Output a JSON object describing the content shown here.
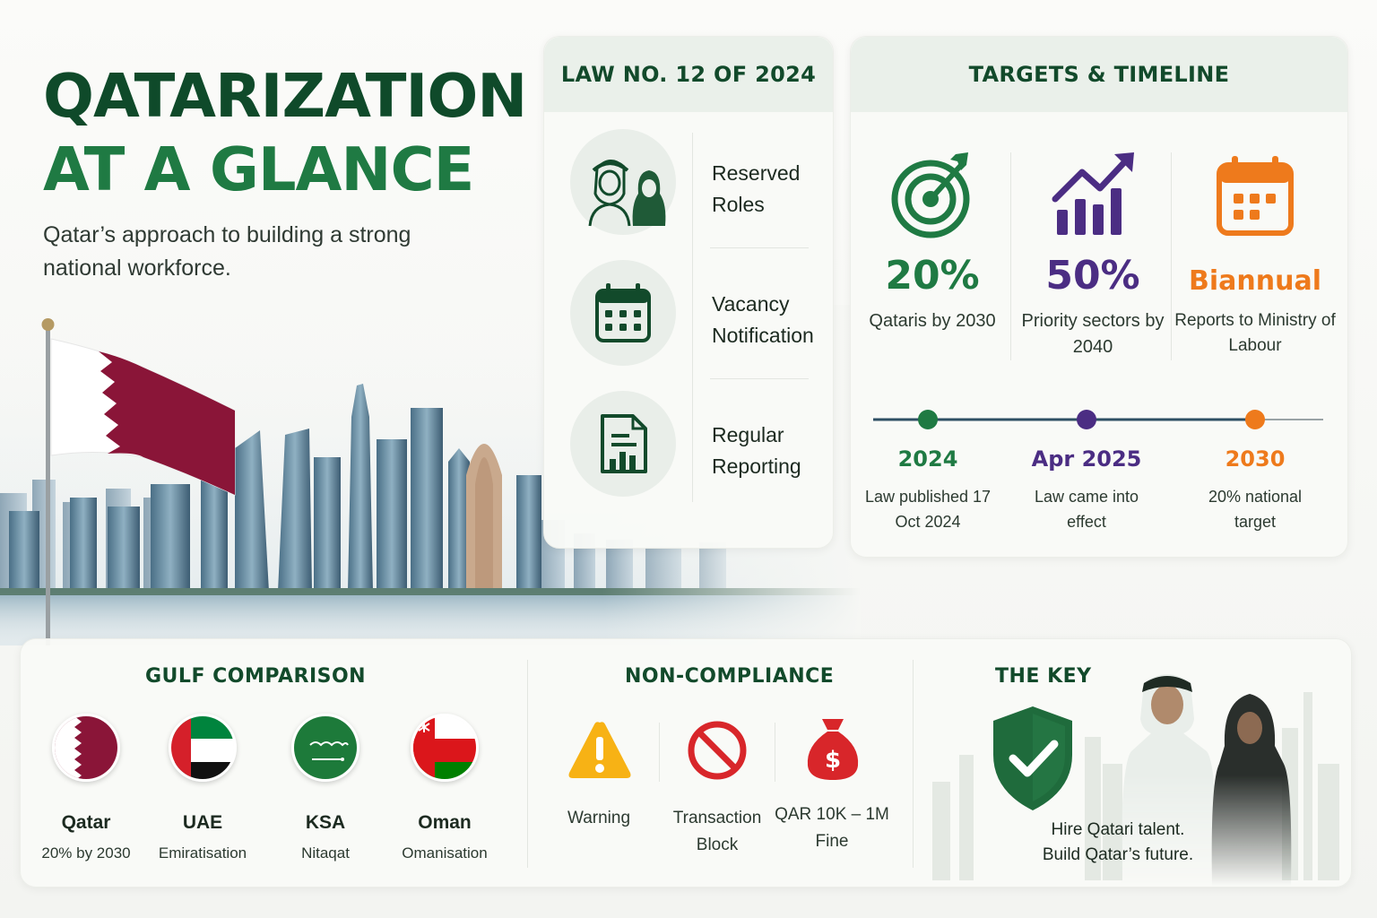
{
  "hero": {
    "title_line1": "QATARIZATION",
    "title_line2": "AT A GLANCE",
    "subtitle": "Qatar’s approach to building a strong national workforce."
  },
  "law": {
    "title": "LAW NO. 12 OF 2024",
    "items": [
      {
        "label": "Reserved Roles",
        "icon": "people-icon"
      },
      {
        "label": "Vacancy Notification",
        "icon": "calendar-icon"
      },
      {
        "label": "Regular Reporting",
        "icon": "report-icon"
      }
    ]
  },
  "targets": {
    "title": "TARGETS & TIMELINE",
    "stats": [
      {
        "value": "20%",
        "label": "Qataris by 2030",
        "icon": "target-icon",
        "color": "#1f7a43"
      },
      {
        "value": "50%",
        "label": "Priority sectors by 2040",
        "icon": "growth-chart-icon",
        "color": "#4b2d83"
      },
      {
        "value": "Biannual",
        "label": "Reports to Ministry of Labour",
        "icon": "calendar-icon",
        "color": "#ee7a1c"
      }
    ],
    "timeline": [
      {
        "year": "2024",
        "label": "Law published 17 Oct 2024",
        "color": "#1f7a43"
      },
      {
        "year": "Apr 2025",
        "label": "Law came into effect",
        "color": "#4b2d83"
      },
      {
        "year": "2030",
        "label": "20% national target",
        "color": "#ee7a1c"
      }
    ]
  },
  "gulf": {
    "title": "GULF COMPARISON",
    "countries": [
      {
        "name": "Qatar",
        "desc": "20% by 2030",
        "icon": "qatar-flag-icon"
      },
      {
        "name": "UAE",
        "desc": "Emiratisation",
        "icon": "uae-flag-icon"
      },
      {
        "name": "KSA",
        "desc": "Nitaqat",
        "icon": "ksa-flag-icon"
      },
      {
        "name": "Oman",
        "desc": "Omanisation",
        "icon": "oman-flag-icon"
      }
    ]
  },
  "noncompliance": {
    "title": "NON-COMPLIANCE",
    "items": [
      {
        "label": "Warning",
        "icon": "warning-icon"
      },
      {
        "label": "Transaction Block",
        "icon": "block-icon"
      },
      {
        "label": "QAR 10K – 1M Fine",
        "icon": "money-bag-icon"
      }
    ]
  },
  "key": {
    "title": "THE KEY",
    "line1": "Hire Qatari talent.",
    "line2": "Build Qatar’s future.",
    "icon": "shield-check-icon"
  },
  "colors": {
    "dark_green": "#0f4a2a",
    "green": "#1f7a43",
    "purple": "#4b2d83",
    "orange": "#ee7a1c",
    "maroon": "#8a1538"
  }
}
